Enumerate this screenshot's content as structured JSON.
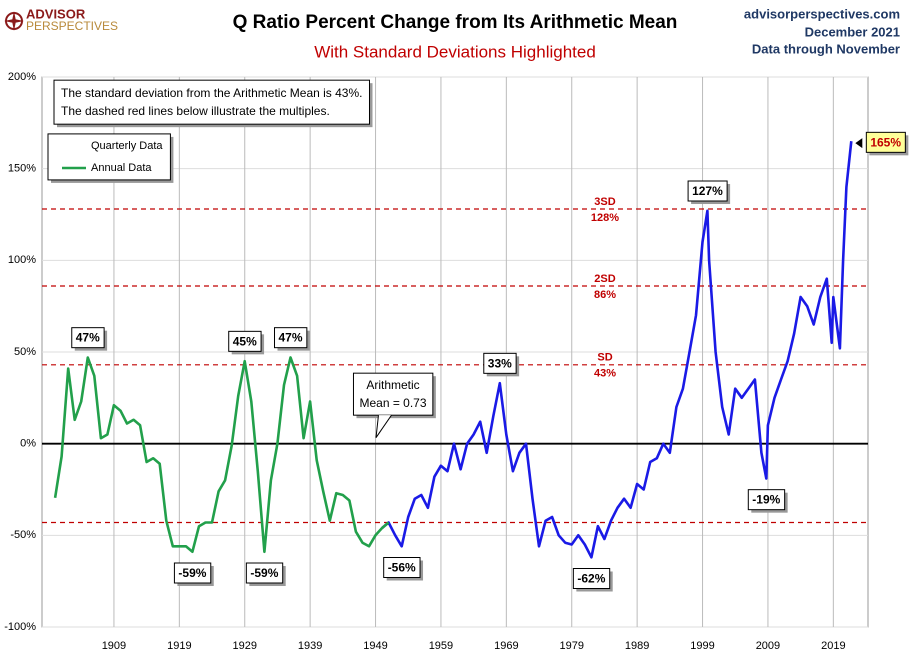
{
  "chart_data": {
    "type": "line",
    "title": "Q Ratio Percent Change from Its Arithmetic Mean",
    "subtitle": "With Standard Deviations Highlighted",
    "brand": [
      "ADVISOR",
      "PERSPECTIVES"
    ],
    "source": [
      "advisorperspectives.com",
      "December 2021",
      "Data through November"
    ],
    "note": [
      "The standard deviation from the Arithmetic Mean is 43%.",
      "The dashed red lines below illustrate the multiples."
    ],
    "mean_label": [
      "Arithmetic",
      "Mean = 0.73"
    ],
    "xlim": [
      1898,
      2024.3
    ],
    "xticks": [
      1909,
      1919,
      1929,
      1939,
      1949,
      1959,
      1969,
      1979,
      1989,
      1999,
      2009,
      2019
    ],
    "ylim": [
      -100,
      200
    ],
    "yticks": [
      {
        "value": -100,
        "label": "-100%"
      },
      {
        "value": -50,
        "label": "-50%"
      },
      {
        "value": 0,
        "label": "0%"
      },
      {
        "value": 50,
        "label": "50%"
      },
      {
        "value": 100,
        "label": "100%"
      },
      {
        "value": 150,
        "label": "150%"
      },
      {
        "value": 200,
        "label": "200%"
      }
    ],
    "grid": true,
    "zero_line": 0,
    "reference_color": "#c00000",
    "reference_lines": [
      {
        "value": 128,
        "label": [
          "3SD",
          "128%"
        ]
      },
      {
        "value": 86,
        "label": [
          "2SD",
          "86%"
        ]
      },
      {
        "value": 43,
        "label": [
          "SD",
          "43%"
        ]
      },
      {
        "value": -43
      }
    ],
    "series": [
      {
        "name": "Quarterly Data",
        "color": "#1a1ae6",
        "x": [
          1950,
          1951,
          1952,
          1953,
          1954,
          1955,
          1956,
          1957,
          1958,
          1959,
          1960,
          1961,
          1962,
          1963,
          1964,
          1965,
          1966,
          1967,
          1968,
          1969,
          1970,
          1971,
          1972,
          1973,
          1974,
          1975,
          1976,
          1977,
          1978,
          1979,
          1980,
          1981,
          1982,
          1983,
          1984,
          1985,
          1986,
          1987,
          1988,
          1989,
          1990,
          1991,
          1992,
          1993,
          1994,
          1995,
          1996,
          1997,
          1998,
          1999,
          1999.75,
          2000,
          2001,
          2002,
          2003,
          2004,
          2005,
          2006,
          2007,
          2008,
          2008.75,
          2009,
          2010,
          2011,
          2012,
          2013,
          2014,
          2015,
          2016,
          2017,
          2018,
          2018.75,
          2019,
          2020,
          2020.5,
          2021,
          2021.75
        ],
        "values": [
          -46,
          -43,
          -50,
          -56,
          -40,
          -30,
          -28,
          -35,
          -18,
          -12,
          -15,
          0,
          -14,
          0,
          5,
          12,
          -5,
          15,
          33,
          5,
          -15,
          -5,
          0,
          -30,
          -56,
          -42,
          -40,
          -50,
          -54,
          -55,
          -50,
          -55,
          -62,
          -45,
          -52,
          -42,
          -35,
          -30,
          -35,
          -22,
          -25,
          -10,
          -8,
          0,
          -5,
          20,
          30,
          50,
          70,
          110,
          127,
          100,
          50,
          20,
          5,
          30,
          25,
          30,
          35,
          -5,
          -19,
          10,
          25,
          35,
          45,
          60,
          80,
          75,
          65,
          80,
          90,
          55,
          80,
          52,
          100,
          140,
          165
        ]
      },
      {
        "name": "Annual Data",
        "color": "#22a04b",
        "x": [
          1900,
          1901,
          1902,
          1903,
          1904,
          1905,
          1906,
          1907,
          1908,
          1909,
          1910,
          1911,
          1912,
          1913,
          1914,
          1915,
          1916,
          1917,
          1918,
          1919,
          1920,
          1921,
          1922,
          1923,
          1924,
          1925,
          1926,
          1927,
          1928,
          1929,
          1930,
          1931,
          1932,
          1933,
          1934,
          1935,
          1936,
          1937,
          1938,
          1939,
          1940,
          1941,
          1942,
          1943,
          1944,
          1945,
          1946,
          1947,
          1948,
          1949,
          1950,
          1951
        ],
        "values": [
          -29.5,
          -7,
          41,
          13,
          23,
          47,
          37,
          3,
          5,
          21,
          18,
          11,
          13,
          10,
          -10,
          -8,
          -11,
          -42,
          -56,
          -56,
          -56,
          -59,
          -45,
          -43,
          -43,
          -26,
          -20,
          -1,
          26,
          45,
          23,
          -15,
          -59,
          -20,
          0,
          32,
          47,
          37,
          3,
          23,
          -9,
          -26,
          -42,
          -27,
          -28,
          -31,
          -48,
          -54,
          -56,
          -50,
          -46,
          -43
        ]
      }
    ],
    "annotations": [
      {
        "text": "47%",
        "x": 1905,
        "y": 47
      },
      {
        "text": "45%",
        "x": 1929,
        "y": 45
      },
      {
        "text": "47%",
        "x": 1936,
        "y": 47
      },
      {
        "text": "33%",
        "x": 1968,
        "y": 33
      },
      {
        "text": "127%",
        "x": 1999.75,
        "y": 127
      },
      {
        "text": "-59%",
        "x": 1921,
        "y": -59
      },
      {
        "text": "-59%",
        "x": 1932,
        "y": -59
      },
      {
        "text": "-56%",
        "x": 1953,
        "y": -56
      },
      {
        "text": "-62%",
        "x": 1982,
        "y": -62
      },
      {
        "text": "-19%",
        "x": 2008.75,
        "y": -19
      },
      {
        "text": "165%",
        "x": 2021.75,
        "y": 165,
        "highlight": true
      }
    ]
  }
}
